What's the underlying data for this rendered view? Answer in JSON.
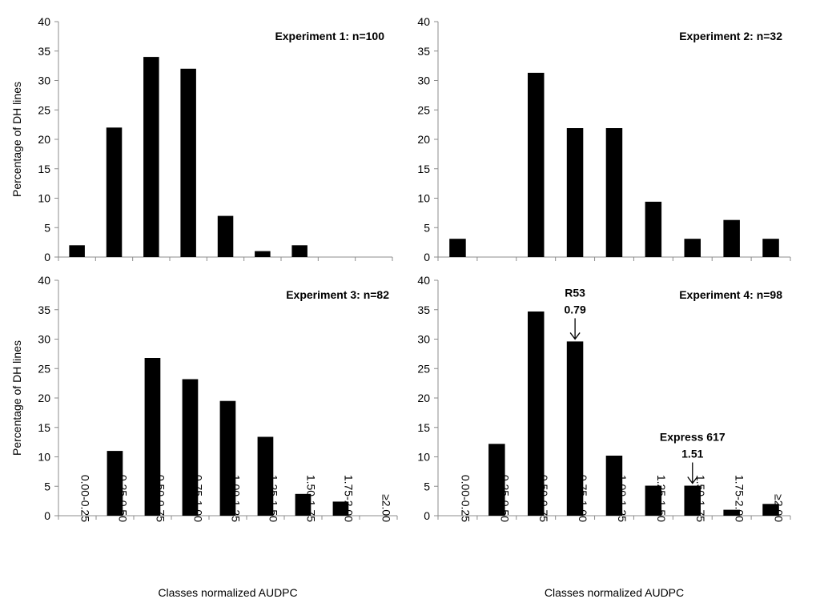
{
  "chart_data": [
    {
      "type": "bar",
      "title": "Experiment 1: n=100",
      "categories": [
        "0.00-0.25",
        "0.25-0.50",
        "0.50-0.75",
        "0.75-1.00",
        "1.00-1.25",
        "1.25-1.50",
        "1.50-1.75",
        "1.75-2.00",
        "≥2.00"
      ],
      "values": [
        2,
        22,
        34,
        32,
        7,
        1,
        2,
        0,
        0
      ],
      "xlabel": "",
      "ylabel": "Percentage of DH lines",
      "ylim": [
        0,
        40
      ],
      "yticks": [
        0,
        5,
        10,
        15,
        20,
        25,
        30,
        35,
        40
      ],
      "annotations": []
    },
    {
      "type": "bar",
      "title": "Experiment 2: n=32",
      "categories": [
        "0.00-0.25",
        "0.25-0.50",
        "0.50-0.75",
        "0.75-1.00",
        "1.00-1.25",
        "1.25-1.50",
        "1.50-1.75",
        "1.75-2.00",
        "≥2.00"
      ],
      "values": [
        3.1,
        0,
        31.3,
        21.9,
        21.9,
        9.4,
        3.1,
        6.3,
        3.1
      ],
      "xlabel": "",
      "ylabel": "",
      "ylim": [
        0,
        40
      ],
      "yticks": [
        0,
        5,
        10,
        15,
        20,
        25,
        30,
        35,
        40
      ],
      "annotations": []
    },
    {
      "type": "bar",
      "title": "Experiment 3: n=82",
      "categories": [
        "0.00-0.25",
        "0.25-0.50",
        "0.50-0.75",
        "0.75-1.00",
        "1.00-1.25",
        "1.25-1.50",
        "1.50-1.75",
        "1.75-2.00",
        "≥2.00"
      ],
      "values": [
        0,
        11,
        26.8,
        23.2,
        19.5,
        13.4,
        3.7,
        2.4,
        0
      ],
      "xlabel": "Classes normalized AUDPC",
      "ylabel": "Percentage of DH lines",
      "ylim": [
        0,
        40
      ],
      "yticks": [
        0,
        5,
        10,
        15,
        20,
        25,
        30,
        35,
        40
      ],
      "annotations": []
    },
    {
      "type": "bar",
      "title": "Experiment 4: n=98",
      "categories": [
        "0.00-0.25",
        "0.25-0.50",
        "0.50-0.75",
        "0.75-1.00",
        "1.00-1.25",
        "1.25-1.50",
        "1.50-1.75",
        "1.75-2.00",
        "≥2.00"
      ],
      "values": [
        0,
        12.2,
        34.7,
        29.6,
        10.2,
        5.1,
        5.1,
        1,
        2
      ],
      "xlabel": "Classes normalized AUDPC",
      "ylabel": "",
      "ylim": [
        0,
        40
      ],
      "yticks": [
        0,
        5,
        10,
        15,
        20,
        25,
        30,
        35,
        40
      ],
      "annotations": [
        {
          "name": "R53",
          "value": "0.79",
          "category_index": 3
        },
        {
          "name": "Express 617",
          "value": "1.51",
          "category_index": 6
        }
      ]
    }
  ]
}
